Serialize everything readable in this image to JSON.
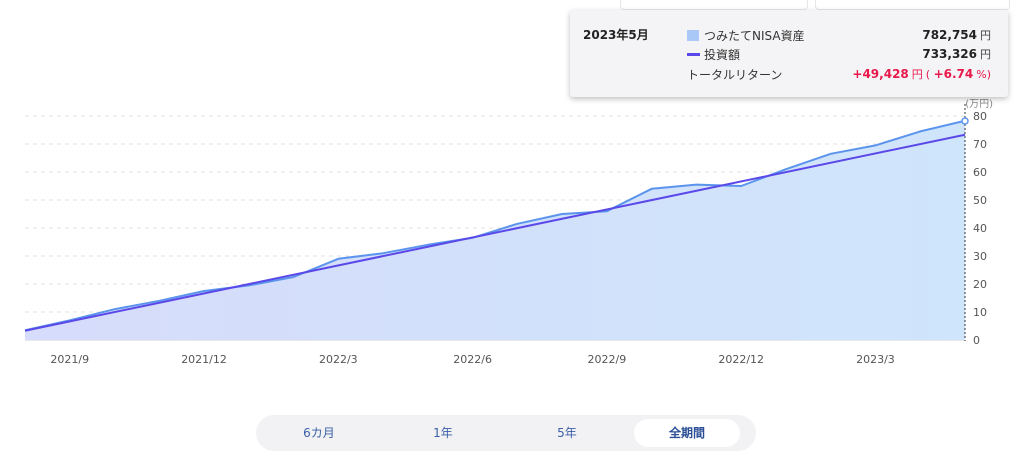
{
  "tooltip": {
    "date": "2023年5月",
    "asset_label": "つみたてNISA資産",
    "asset_value": "782,754",
    "invest_label": "投資額",
    "invest_value": "733,326",
    "return_label": "トータルリターン",
    "return_value": "+49,428",
    "return_pct_open": "( ",
    "return_pct": "+6.74",
    "return_pct_unit": "%)",
    "unit": "円"
  },
  "period_selector": {
    "options": [
      "6カ月",
      "1年",
      "5年",
      "全期間"
    ],
    "active": "全期間"
  },
  "colors": {
    "asset_line": "#5b94ec",
    "asset_fill": "#cfe2fb",
    "invest_line": "#5b48e8",
    "return": "#e8184b",
    "grid": "#e3e3e3"
  },
  "chart_data": {
    "type": "area",
    "y_unit": "(万円)",
    "ylim": [
      0,
      80
    ],
    "y_ticks": [
      0,
      10,
      20,
      30,
      40,
      50,
      60,
      70,
      80
    ],
    "x_tick_labels": [
      {
        "label": "2021/9",
        "x": 1
      },
      {
        "label": "2021/12",
        "x": 4
      },
      {
        "label": "2022/3",
        "x": 7
      },
      {
        "label": "2022/6",
        "x": 10
      },
      {
        "label": "2022/9",
        "x": 13
      },
      {
        "label": "2022/12",
        "x": 16
      },
      {
        "label": "2023/3",
        "x": 19
      }
    ],
    "x_range": [
      0,
      21
    ],
    "series": [
      {
        "name": "つみたてNISA資産",
        "type": "area",
        "x": [
          0,
          1,
          2,
          3,
          4,
          5,
          6,
          7,
          8,
          9,
          10,
          11,
          12,
          13,
          14,
          15,
          16,
          17,
          18,
          19,
          20,
          21
        ],
        "values": [
          3.5,
          7.0,
          11.0,
          14.0,
          17.5,
          19.5,
          22.5,
          29.0,
          31.0,
          34.0,
          36.5,
          41.5,
          45.0,
          46.0,
          54.0,
          55.5,
          55.0,
          61.0,
          66.5,
          69.5,
          74.5,
          78.3
        ]
      },
      {
        "name": "投資額",
        "type": "line",
        "x": [
          0,
          21
        ],
        "values": [
          3.3,
          73.3
        ]
      }
    ],
    "grid": true,
    "legend": "tooltip"
  }
}
